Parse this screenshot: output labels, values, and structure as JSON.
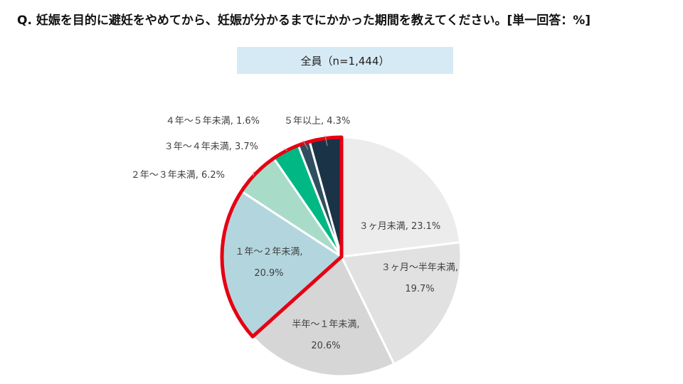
{
  "title": "Q. 妊娠を目的に避妊をやめてから、妊娠が分かるまでにかかった期間を教えてください。[単一回答：%]",
  "subtitle": "全員（n=1,444）",
  "chart_data": {
    "type": "pie",
    "title": "Q. 妊娠を目的に避妊をやめてから、妊娠が分かるまでにかかった期間を教えてください。[単一回答：%]",
    "subtitle": "全員（n=1,444）",
    "unit": "%",
    "slices": [
      {
        "label": "３ヶ月未満",
        "value": 23.1,
        "value_text": "23.1%",
        "color": "#ececec",
        "highlighted": false
      },
      {
        "label": "３ヶ月～半年未満",
        "value": 19.7,
        "value_text": "19.7%",
        "color": "#e1e1e1",
        "highlighted": false
      },
      {
        "label": "半年～１年未満",
        "value": 20.6,
        "value_text": "20.6%",
        "color": "#d6d6d6",
        "highlighted": false
      },
      {
        "label": "１年～２年未満",
        "value": 20.9,
        "value_text": "20.9%",
        "color": "#b3d6de",
        "highlighted": true
      },
      {
        "label": "２年～３年未満",
        "value": 6.2,
        "value_text": "6.2%",
        "color": "#a8dcc8",
        "highlighted": true
      },
      {
        "label": "３年～４年未満",
        "value": 3.7,
        "value_text": "3.7%",
        "color": "#00b884",
        "highlighted": true
      },
      {
        "label": "４年～５年未満",
        "value": 1.6,
        "value_text": "1.6%",
        "color": "#2f4f5f",
        "highlighted": true
      },
      {
        "label": "５年以上",
        "value": 4.3,
        "value_text": "4.3%",
        "color": "#1b3347",
        "highlighted": true
      }
    ],
    "highlight_color": "#e60012"
  }
}
